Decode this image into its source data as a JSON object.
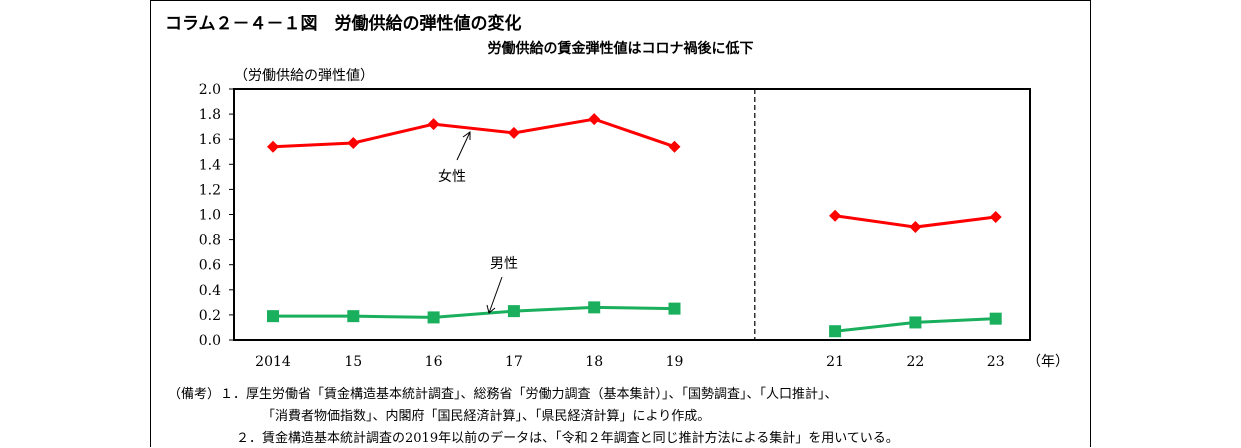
{
  "title": "コラム２－４－１図　労働供給の弾性値の変化",
  "subtitle": "労働供給の賃金弾性値はコロナ禍後に低下",
  "chart_data": {
    "type": "line",
    "ylabel": "（労働供給の弾性値）",
    "xunit": "（年）",
    "ylim": [
      0.0,
      2.0
    ],
    "ystep": 0.2,
    "yticks": [
      "0.0",
      "0.2",
      "0.4",
      "0.6",
      "0.8",
      "1.0",
      "1.2",
      "1.4",
      "1.6",
      "1.8",
      "2.0"
    ],
    "categories": [
      "2014",
      "15",
      "16",
      "17",
      "18",
      "19",
      "",
      "21",
      "22",
      "23"
    ],
    "break_between": [
      "19",
      "21"
    ],
    "series": [
      {
        "name": "女性",
        "color": "#ff0000",
        "marker": "diamond",
        "values": [
          1.54,
          1.57,
          1.72,
          1.65,
          1.76,
          1.54,
          null,
          0.99,
          0.9,
          0.98
        ]
      },
      {
        "name": "男性",
        "color": "#1aaf5d",
        "marker": "square",
        "values": [
          0.19,
          0.19,
          0.18,
          0.23,
          0.26,
          0.25,
          null,
          0.07,
          0.14,
          0.17
        ]
      }
    ],
    "grid": false,
    "legend": "inline-labels"
  },
  "notes": [
    "（備考）１．厚生労働省「賃金構造基本統計調査」、総務省「労働力調査（基本集計）」、「国勢調査」、「人口推計」、",
    "「消費者物価指数」、内閣府「国民経済計算」、「県民経済計算」により作成。",
    "２．賃金構造基本統計調査の2019年以前のデータは、「令和２年調査と同じ推計方法による集計」を用いている。"
  ]
}
